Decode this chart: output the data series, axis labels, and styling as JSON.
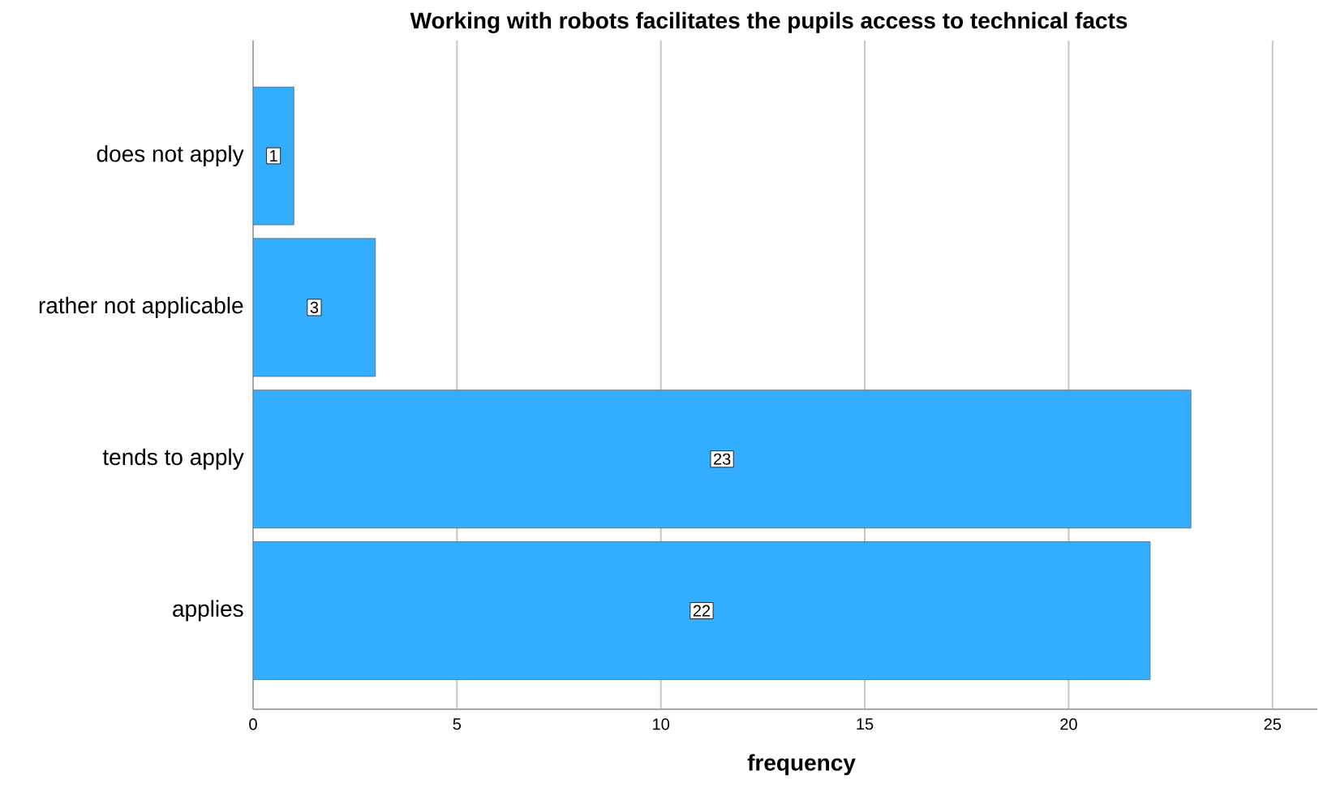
{
  "chart_data": {
    "type": "bar",
    "orientation": "horizontal",
    "title": "Working with robots facilitates the pupils access to technical facts",
    "xlabel": "frequency",
    "categories": [
      "does not apply",
      "rather not applicable",
      "tends to apply",
      "applies"
    ],
    "values": [
      1,
      3,
      23,
      22
    ],
    "color": "#33adff",
    "data_labels": true,
    "grid": "x",
    "xlim": [
      0,
      26.1
    ],
    "xticks": [
      0,
      5,
      10,
      15,
      20,
      25
    ]
  }
}
